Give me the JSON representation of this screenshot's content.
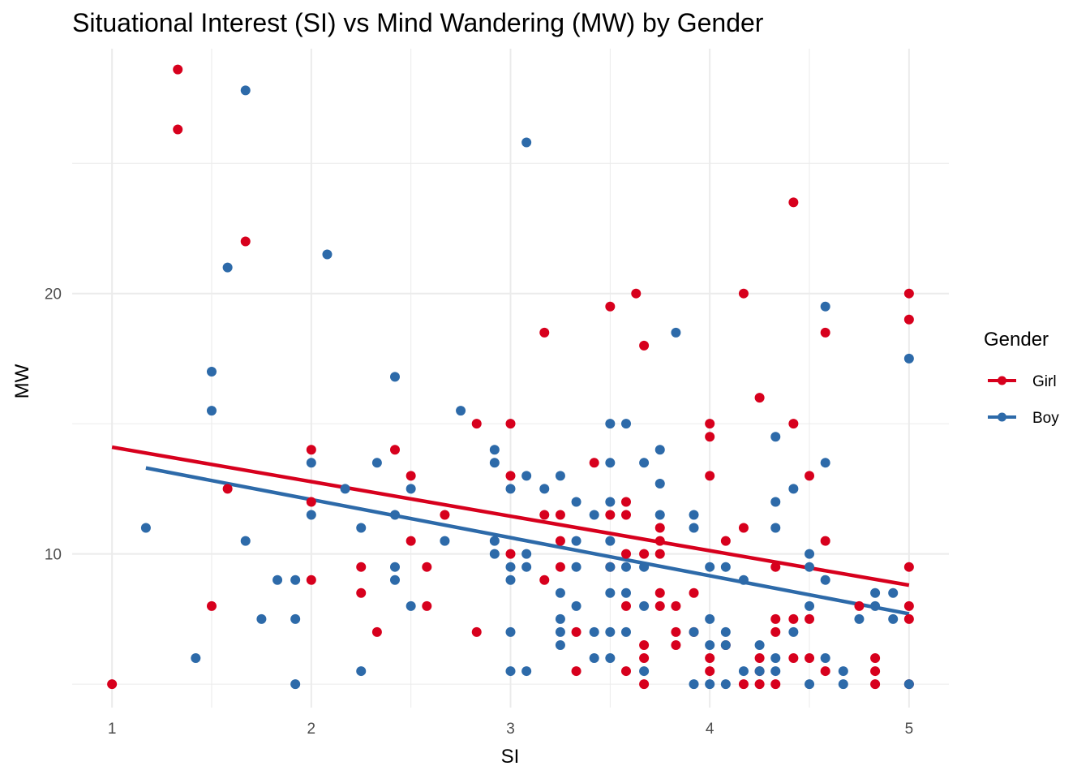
{
  "chart_data": {
    "type": "scatter",
    "title": "Situational Interest (SI) vs Mind Wandering (MW) by Gender",
    "xlabel": "SI",
    "ylabel": "MW",
    "xlim": [
      0.8,
      5.2
    ],
    "ylim": [
      4.1,
      29.4
    ],
    "x_ticks": [
      "1",
      "2",
      "3",
      "4",
      "5"
    ],
    "x_tick_values": [
      1,
      2,
      3,
      4,
      5
    ],
    "y_ticks": [
      "10",
      "20"
    ],
    "y_tick_values": [
      10,
      20
    ],
    "grid": true,
    "legend": {
      "title": "Gender",
      "position": "right"
    },
    "series": [
      {
        "name": "Girl",
        "color": "#d7001d",
        "trend": {
          "x": [
            1.0,
            5.0
          ],
          "y": [
            14.1,
            8.8
          ]
        },
        "points": [
          [
            1.0,
            5
          ],
          [
            1.33,
            28.6
          ],
          [
            1.33,
            26.3
          ],
          [
            1.5,
            8
          ],
          [
            1.58,
            12.5
          ],
          [
            1.67,
            22
          ],
          [
            2.0,
            14
          ],
          [
            2.0,
            12
          ],
          [
            2.0,
            9
          ],
          [
            2.25,
            9.5
          ],
          [
            2.25,
            8.5
          ],
          [
            2.33,
            7
          ],
          [
            2.42,
            14
          ],
          [
            2.5,
            13
          ],
          [
            2.5,
            10.5
          ],
          [
            2.58,
            9.5
          ],
          [
            2.58,
            8
          ],
          [
            2.67,
            11.5
          ],
          [
            2.83,
            15
          ],
          [
            2.83,
            7
          ],
          [
            3.0,
            15
          ],
          [
            3.0,
            13
          ],
          [
            3.0,
            10
          ],
          [
            3.17,
            18.5
          ],
          [
            3.17,
            11.5
          ],
          [
            3.17,
            9
          ],
          [
            3.25,
            11.5
          ],
          [
            3.25,
            10.5
          ],
          [
            3.25,
            9.5
          ],
          [
            3.33,
            7
          ],
          [
            3.33,
            5.5
          ],
          [
            3.42,
            13.5
          ],
          [
            3.5,
            19.5
          ],
          [
            3.5,
            11.5
          ],
          [
            3.5,
            9.5
          ],
          [
            3.58,
            12
          ],
          [
            3.58,
            11.5
          ],
          [
            3.58,
            10
          ],
          [
            3.58,
            8
          ],
          [
            3.58,
            5.5
          ],
          [
            3.63,
            20
          ],
          [
            3.67,
            18
          ],
          [
            3.67,
            10
          ],
          [
            3.67,
            6.5
          ],
          [
            3.67,
            6
          ],
          [
            3.67,
            5
          ],
          [
            3.75,
            11
          ],
          [
            3.75,
            10.5
          ],
          [
            3.75,
            10
          ],
          [
            3.75,
            8.5
          ],
          [
            3.75,
            8
          ],
          [
            3.83,
            8
          ],
          [
            3.83,
            7
          ],
          [
            3.83,
            6.5
          ],
          [
            3.92,
            8.5
          ],
          [
            3.92,
            7
          ],
          [
            4.0,
            15
          ],
          [
            4.0,
            14.5
          ],
          [
            4.0,
            13
          ],
          [
            4.0,
            6
          ],
          [
            4.0,
            5.5
          ],
          [
            4.08,
            10.5
          ],
          [
            4.08,
            6.5
          ],
          [
            4.17,
            20
          ],
          [
            4.17,
            11
          ],
          [
            4.17,
            5
          ],
          [
            4.25,
            16
          ],
          [
            4.25,
            6
          ],
          [
            4.25,
            5.5
          ],
          [
            4.25,
            5
          ],
          [
            4.33,
            9.5
          ],
          [
            4.33,
            7.5
          ],
          [
            4.33,
            7
          ],
          [
            4.33,
            5
          ],
          [
            4.42,
            23.5
          ],
          [
            4.42,
            15
          ],
          [
            4.42,
            7.5
          ],
          [
            4.42,
            6
          ],
          [
            4.5,
            13
          ],
          [
            4.5,
            7.5
          ],
          [
            4.5,
            6
          ],
          [
            4.58,
            18.5
          ],
          [
            4.58,
            10.5
          ],
          [
            4.58,
            5.5
          ],
          [
            4.75,
            8
          ],
          [
            4.83,
            6
          ],
          [
            4.83,
            5.5
          ],
          [
            4.83,
            5
          ],
          [
            5.0,
            20
          ],
          [
            5.0,
            19
          ],
          [
            5.0,
            9.5
          ],
          [
            5.0,
            8
          ],
          [
            5.0,
            7.5
          ],
          [
            5.0,
            5
          ]
        ]
      },
      {
        "name": "Boy",
        "color": "#2d6aa9",
        "trend": {
          "x": [
            1.17,
            5.0
          ],
          "y": [
            13.3,
            7.7
          ]
        },
        "points": [
          [
            1.17,
            11
          ],
          [
            1.42,
            6
          ],
          [
            1.5,
            17
          ],
          [
            1.5,
            15.5
          ],
          [
            1.58,
            21
          ],
          [
            1.67,
            27.8
          ],
          [
            1.67,
            10.5
          ],
          [
            1.75,
            7.5
          ],
          [
            1.83,
            9
          ],
          [
            1.92,
            9
          ],
          [
            1.92,
            7.5
          ],
          [
            1.92,
            5
          ],
          [
            2.0,
            13.5
          ],
          [
            2.0,
            11.5
          ],
          [
            2.08,
            21.5
          ],
          [
            2.17,
            12.5
          ],
          [
            2.25,
            11
          ],
          [
            2.25,
            5.5
          ],
          [
            2.33,
            13.5
          ],
          [
            2.42,
            16.8
          ],
          [
            2.42,
            11.5
          ],
          [
            2.42,
            9.5
          ],
          [
            2.42,
            9
          ],
          [
            2.5,
            12.5
          ],
          [
            2.5,
            8
          ],
          [
            2.67,
            10.5
          ],
          [
            2.75,
            15.5
          ],
          [
            2.92,
            14
          ],
          [
            2.92,
            13.5
          ],
          [
            2.92,
            10.5
          ],
          [
            2.92,
            10
          ],
          [
            3.0,
            12.5
          ],
          [
            3.0,
            9.5
          ],
          [
            3.0,
            9
          ],
          [
            3.0,
            7
          ],
          [
            3.0,
            5.5
          ],
          [
            3.08,
            25.8
          ],
          [
            3.08,
            13
          ],
          [
            3.08,
            10
          ],
          [
            3.08,
            9.5
          ],
          [
            3.08,
            5.5
          ],
          [
            3.17,
            12.5
          ],
          [
            3.25,
            13
          ],
          [
            3.25,
            8.5
          ],
          [
            3.25,
            7.5
          ],
          [
            3.25,
            7
          ],
          [
            3.25,
            6.5
          ],
          [
            3.33,
            12
          ],
          [
            3.33,
            10.5
          ],
          [
            3.33,
            9.5
          ],
          [
            3.33,
            8
          ],
          [
            3.42,
            11.5
          ],
          [
            3.42,
            7
          ],
          [
            3.42,
            6
          ],
          [
            3.5,
            15
          ],
          [
            3.5,
            13.5
          ],
          [
            3.5,
            12
          ],
          [
            3.5,
            10.5
          ],
          [
            3.5,
            9.5
          ],
          [
            3.5,
            8.5
          ],
          [
            3.5,
            7
          ],
          [
            3.5,
            6
          ],
          [
            3.58,
            15
          ],
          [
            3.58,
            9.5
          ],
          [
            3.58,
            8.5
          ],
          [
            3.58,
            7
          ],
          [
            3.67,
            13.5
          ],
          [
            3.67,
            9.5
          ],
          [
            3.67,
            8
          ],
          [
            3.67,
            5.5
          ],
          [
            3.75,
            14
          ],
          [
            3.75,
            12.7
          ],
          [
            3.75,
            11.5
          ],
          [
            3.83,
            18.5
          ],
          [
            3.92,
            11.5
          ],
          [
            3.92,
            11
          ],
          [
            3.92,
            7
          ],
          [
            3.92,
            5
          ],
          [
            4.0,
            9.5
          ],
          [
            4.0,
            7.5
          ],
          [
            4.0,
            6.5
          ],
          [
            4.0,
            5
          ],
          [
            4.08,
            9.5
          ],
          [
            4.08,
            7
          ],
          [
            4.08,
            6.5
          ],
          [
            4.08,
            5
          ],
          [
            4.17,
            9
          ],
          [
            4.17,
            5.5
          ],
          [
            4.25,
            6.5
          ],
          [
            4.25,
            5.5
          ],
          [
            4.33,
            14.5
          ],
          [
            4.33,
            12
          ],
          [
            4.33,
            11
          ],
          [
            4.33,
            6
          ],
          [
            4.33,
            5.5
          ],
          [
            4.42,
            12.5
          ],
          [
            4.42,
            7
          ],
          [
            4.5,
            10
          ],
          [
            4.5,
            9.5
          ],
          [
            4.5,
            8
          ],
          [
            4.5,
            5
          ],
          [
            4.58,
            19.5
          ],
          [
            4.58,
            13.5
          ],
          [
            4.58,
            9
          ],
          [
            4.58,
            6
          ],
          [
            4.67,
            5.5
          ],
          [
            4.67,
            5
          ],
          [
            4.75,
            7.5
          ],
          [
            4.83,
            8.5
          ],
          [
            4.83,
            8
          ],
          [
            4.92,
            8.5
          ],
          [
            4.92,
            7.5
          ],
          [
            5.0,
            17.5
          ],
          [
            5.0,
            5
          ]
        ]
      }
    ]
  }
}
